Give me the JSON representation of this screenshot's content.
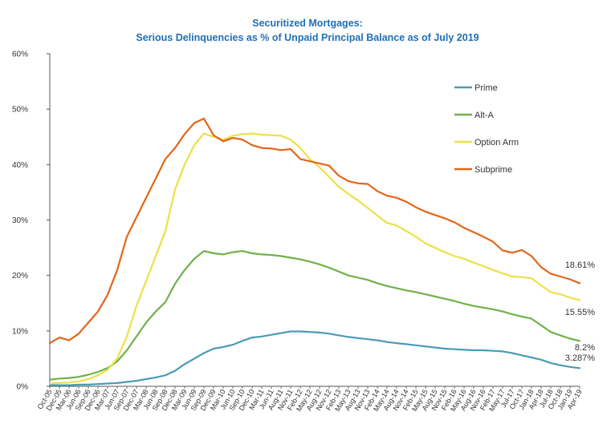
{
  "chart_data": {
    "type": "line",
    "title": "Securitized Mortgages:",
    "subtitle": "Serious Delinquencies as % of Unpaid Principal Balance as of July 2019",
    "xlabel": "",
    "ylabel": "",
    "ylim": [
      0,
      60
    ],
    "yticks": [
      "0%",
      "10%",
      "20%",
      "30%",
      "40%",
      "50%",
      "60%"
    ],
    "x_labels": [
      "Oct-05",
      "Dec-05",
      "Mar-06",
      "Jun-06",
      "Sep-06",
      "Dec-06",
      "Mar-07",
      "Jun-07",
      "Sep-07",
      "Dec-07",
      "Mar-08",
      "Jun-08",
      "Sep-08",
      "Dec-08",
      "Mar-09",
      "Jun-09",
      "Sep-09",
      "Dec-09",
      "Mar-10",
      "Jun-10",
      "Sep-10",
      "Dec-10",
      "Mar-11",
      "Jun-11",
      "Aug-11",
      "Nov-11",
      "Feb-12",
      "May-12",
      "Aug-12",
      "Nov-12",
      "Feb-13",
      "May-13",
      "Aug-13",
      "Nov-13",
      "Feb-14",
      "May-14",
      "Aug-14",
      "Nov-14",
      "Feb-15",
      "May-15",
      "Aug-15",
      "Nov-15",
      "Feb-16",
      "May-16",
      "Aug-16",
      "Nov-16",
      "Feb-17",
      "May-17",
      "Jul-17",
      "Oct-17",
      "Jan-18",
      "Apr-18",
      "Jul-18",
      "Oct-18",
      "Jan-19",
      "Apr-19"
    ],
    "grid": false,
    "legend_position": "right",
    "series": [
      {
        "name": "Prime",
        "color": "#4a9bb5",
        "values": [
          0.2,
          0.2,
          0.2,
          0.3,
          0.3,
          0.4,
          0.5,
          0.6,
          0.8,
          1.0,
          1.3,
          1.6,
          2.0,
          2.8,
          4.0,
          5.0,
          6.0,
          6.8,
          7.1,
          7.5,
          8.2,
          8.8,
          9.0,
          9.3,
          9.6,
          9.9,
          9.9,
          9.8,
          9.7,
          9.5,
          9.2,
          8.9,
          8.7,
          8.5,
          8.3,
          8.0,
          7.8,
          7.6,
          7.4,
          7.2,
          7.0,
          6.8,
          6.7,
          6.6,
          6.5,
          6.5,
          6.4,
          6.3,
          6.0,
          5.6,
          5.2,
          4.8,
          4.2,
          3.8,
          3.5,
          3.287
        ],
        "end_label": "3.287%"
      },
      {
        "name": "Alt-A",
        "color": "#6fb14b",
        "values": [
          1.2,
          1.4,
          1.5,
          1.7,
          2.1,
          2.6,
          3.3,
          4.5,
          6.5,
          9.0,
          11.5,
          13.5,
          15.2,
          18.5,
          21.0,
          23.0,
          24.4,
          24.0,
          23.8,
          24.2,
          24.4,
          24.0,
          23.8,
          23.7,
          23.5,
          23.2,
          22.9,
          22.5,
          22.0,
          21.4,
          20.7,
          20.0,
          19.6,
          19.2,
          18.6,
          18.1,
          17.7,
          17.3,
          17.0,
          16.6,
          16.2,
          15.8,
          15.4,
          14.9,
          14.5,
          14.2,
          13.9,
          13.5,
          13.0,
          12.6,
          12.2,
          11.0,
          9.8,
          9.2,
          8.6,
          8.2
        ],
        "end_label": "8.2%"
      },
      {
        "name": "Option Arm",
        "color": "#ece04a",
        "values": [
          0.5,
          0.6,
          0.7,
          0.9,
          1.3,
          2.0,
          3.0,
          5.0,
          9.0,
          14.5,
          19.0,
          23.5,
          28.0,
          35.5,
          40.0,
          43.5,
          45.6,
          45.0,
          44.5,
          45.2,
          45.5,
          45.6,
          45.4,
          45.3,
          45.2,
          44.5,
          43.0,
          41.0,
          39.5,
          37.8,
          36.0,
          34.7,
          33.5,
          32.2,
          30.8,
          29.5,
          29.0,
          28.0,
          27.0,
          25.8,
          25.0,
          24.2,
          23.5,
          23.0,
          22.3,
          21.7,
          21.0,
          20.4,
          19.8,
          19.7,
          19.5,
          18.2,
          17.0,
          16.6,
          16.0,
          15.55
        ],
        "end_label": "15.55%"
      },
      {
        "name": "Subprime",
        "color": "#e2661a",
        "values": [
          7.8,
          8.8,
          8.3,
          9.5,
          11.5,
          13.5,
          16.5,
          21.0,
          27.0,
          30.5,
          34.0,
          37.5,
          41.0,
          43.0,
          45.5,
          47.5,
          48.3,
          45.3,
          44.2,
          44.8,
          44.5,
          43.5,
          43.0,
          42.9,
          42.6,
          42.8,
          41.0,
          40.6,
          40.2,
          39.8,
          38.0,
          37.0,
          36.6,
          36.5,
          35.2,
          34.4,
          34.0,
          33.3,
          32.3,
          31.5,
          30.9,
          30.3,
          29.6,
          28.6,
          27.8,
          27.0,
          26.1,
          24.5,
          24.1,
          24.6,
          23.5,
          21.5,
          20.3,
          19.8,
          19.3,
          18.61
        ],
        "end_label": "18.61%"
      }
    ]
  }
}
